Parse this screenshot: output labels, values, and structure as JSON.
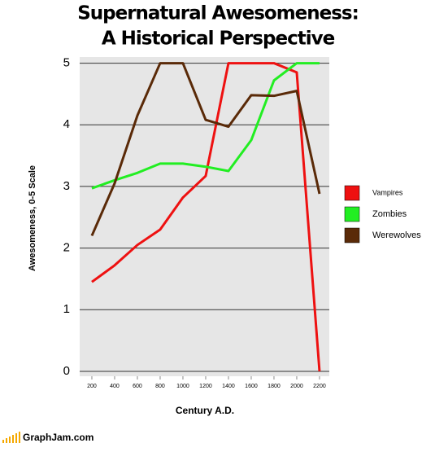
{
  "chart_data": {
    "type": "line",
    "title": [
      "Supernatural Awesomeness:",
      "A Historical Perspective"
    ],
    "x_label": "Century A.D.",
    "y_label": "Awesomeness, 0-5 Scale",
    "x": [
      200,
      400,
      600,
      800,
      1000,
      1200,
      1400,
      1600,
      1800,
      2000,
      2200
    ],
    "series": [
      {
        "name": "Vampires",
        "color": "#ee1111",
        "values": [
          1.45,
          1.72,
          2.05,
          2.3,
          2.82,
          3.17,
          5,
          5,
          5,
          4.85,
          0
        ]
      },
      {
        "name": "Zombies",
        "color": "#22ee22",
        "values": [
          2.97,
          3.1,
          3.22,
          3.37,
          3.37,
          3.32,
          3.25,
          3.75,
          4.72,
          5,
          5
        ]
      },
      {
        "name": "Werewolves",
        "color": "#5a2a08",
        "values": [
          2.2,
          3.05,
          4.15,
          5,
          5,
          4.08,
          3.97,
          4.48,
          4.47,
          4.55,
          2.88
        ]
      }
    ],
    "xlim": [
      93,
      2286
    ],
    "xticks": [
      200,
      400,
      600,
      800,
      1000,
      1200,
      1400,
      1600,
      1800,
      2000,
      2200
    ],
    "ylim": [
      -0.08,
      5.1
    ],
    "yticks": [
      0,
      1,
      2,
      3,
      4,
      5
    ],
    "grid": true,
    "legend": "right",
    "footer": "GraphJam.com"
  }
}
